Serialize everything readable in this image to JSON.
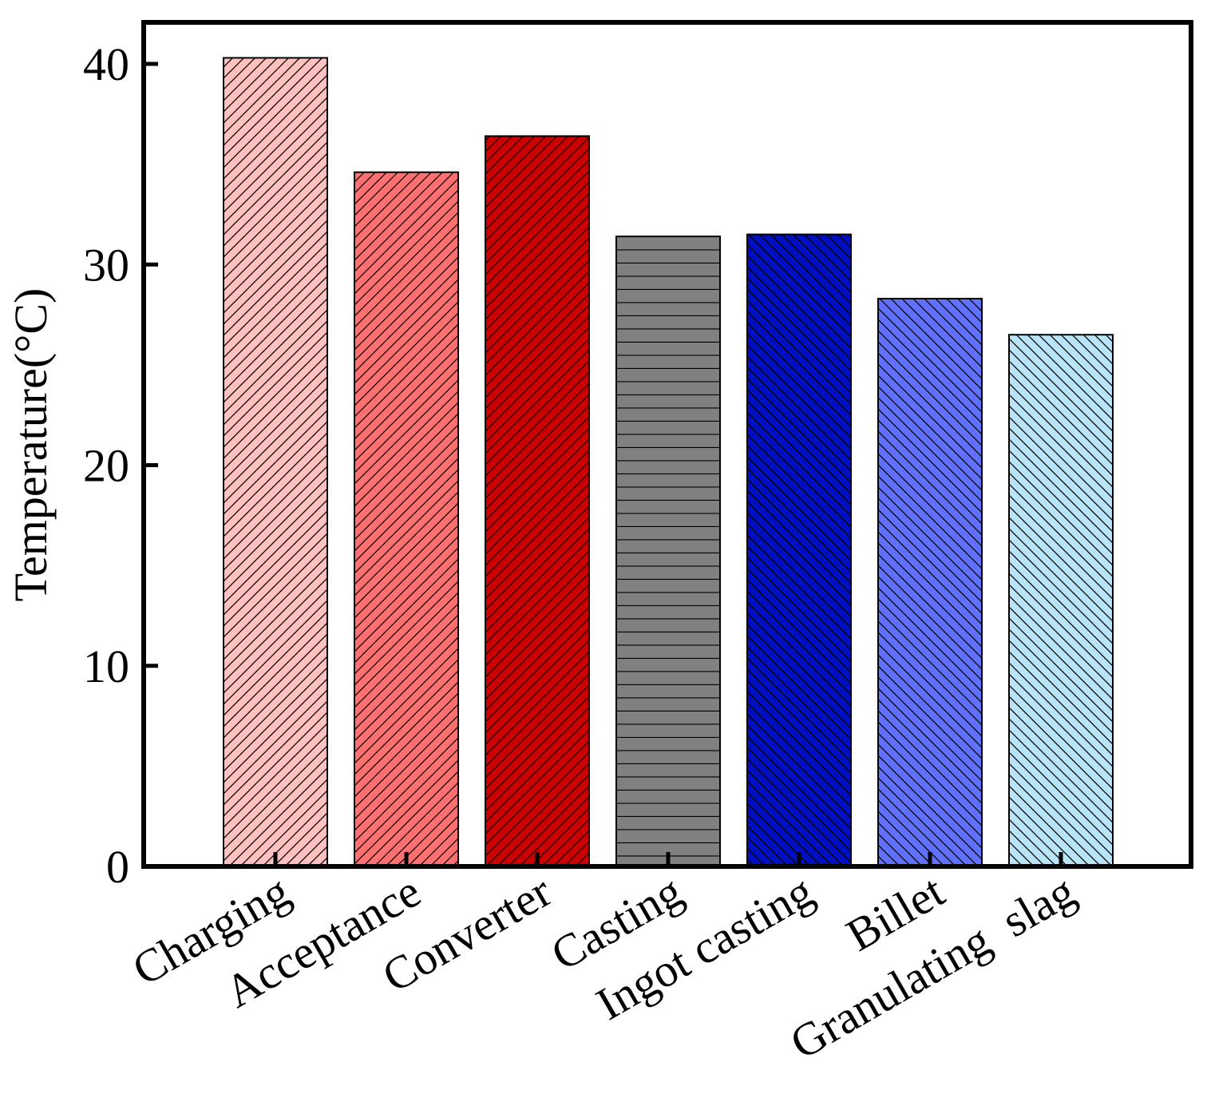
{
  "chart_data": {
    "type": "bar",
    "title": "",
    "xlabel": "",
    "ylabel": "Temperature(°C)",
    "ylim": [
      0,
      42
    ],
    "yticks": [
      0,
      10,
      20,
      30,
      40
    ],
    "categories": [
      "Charging",
      "Acceptance",
      "Converter",
      "Casting",
      "Ingot casting",
      "Billet",
      "Granulating  slag"
    ],
    "values": [
      40.3,
      34.6,
      36.4,
      31.4,
      31.5,
      28.3,
      26.5
    ],
    "colors": [
      "#ffc0c0",
      "#ff7070",
      "#cc0000",
      "#808080",
      "#0010c0",
      "#6070ff",
      "#b8e4f8"
    ],
    "hatches": [
      "diag-right",
      "diag-right",
      "diag-right",
      "horizontal",
      "diag-left",
      "diag-left",
      "diag-left"
    ],
    "grid": false,
    "legend": "none"
  }
}
